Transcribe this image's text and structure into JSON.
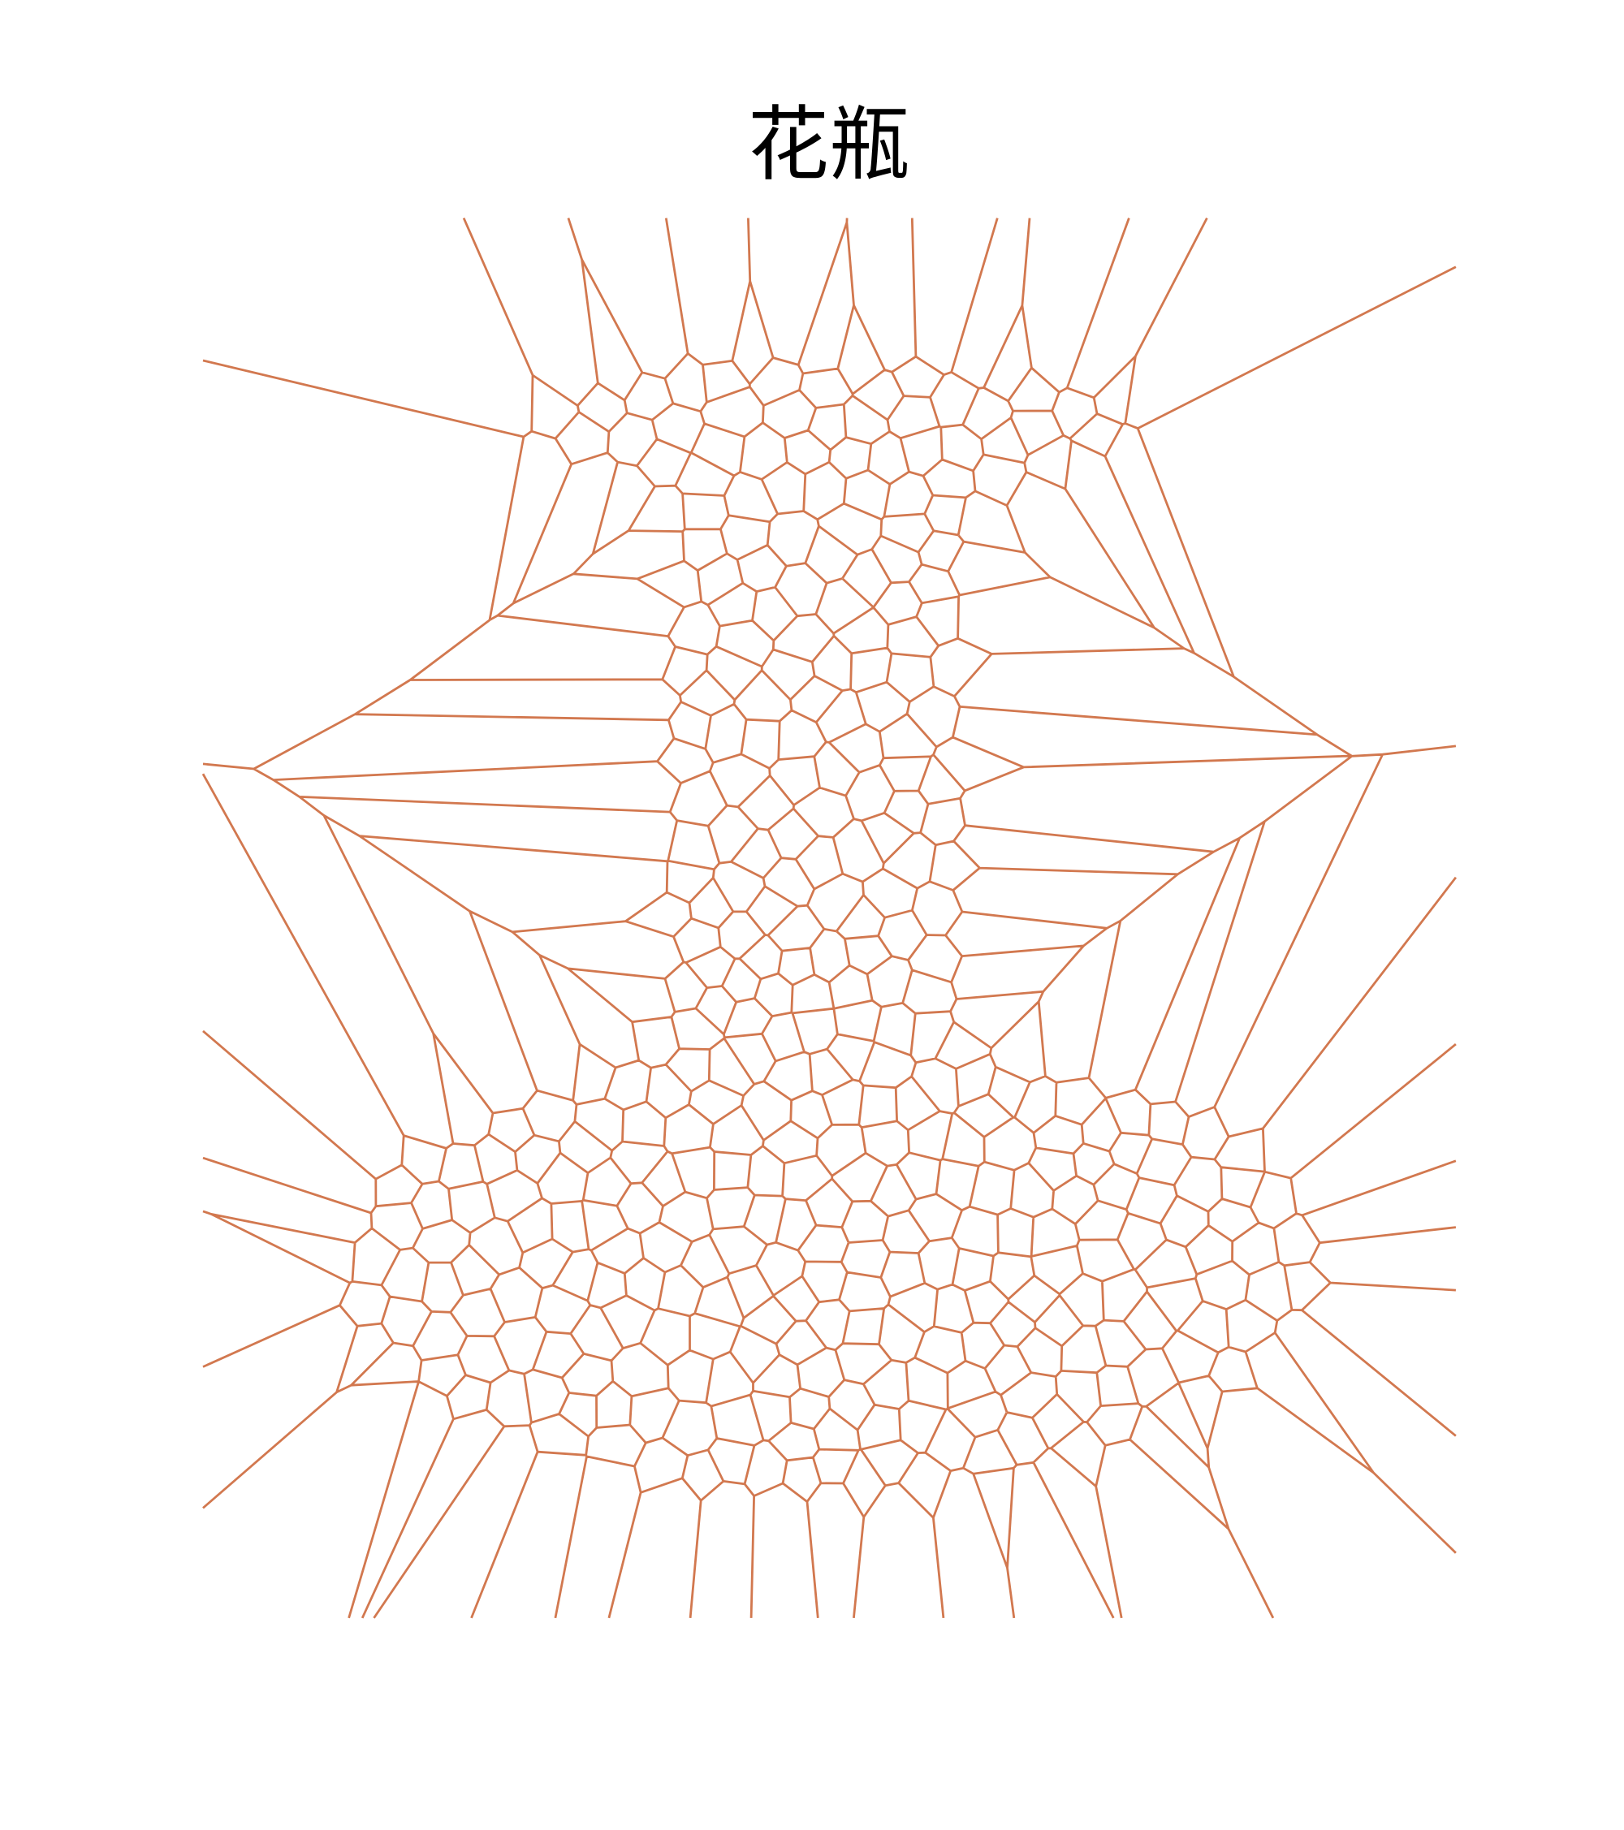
{
  "title": "花瓶"
}
